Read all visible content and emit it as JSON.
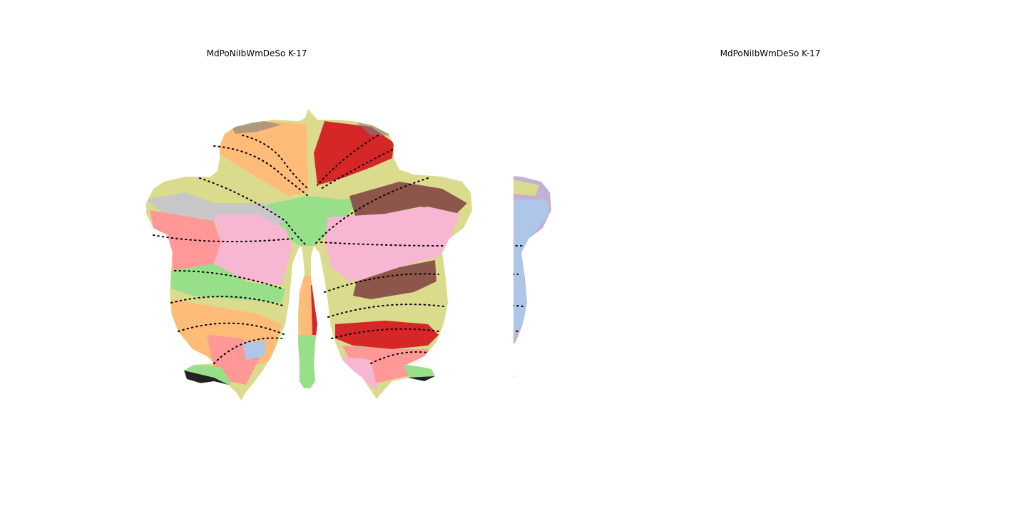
{
  "figure": {
    "panels": [
      {
        "title": "MdPoNiIbWmDeSo K-17",
        "image": "cerebellar flatmap parcellation",
        "palette": {
          "olive": "#dbdb8d",
          "light_orange": "#ffbb78",
          "orange": "#ff7f0e",
          "red": "#d62728",
          "light_green": "#98df8a",
          "green": "#2ca02c",
          "brown": "#8c564b",
          "light_brown": "#c49c94",
          "pink": "#f7b6d2",
          "magenta": "#e377c2",
          "salmon": "#ff9896",
          "grey": "#c7c7c7",
          "dark_grey": "#7f7f7f",
          "lavender": "#c5b0d5",
          "purple": "#9467bd",
          "light_blue": "#aec7e8",
          "yellow_green": "#bcbd22"
        }
      },
      {
        "title": "MdPoNiIbWmDeSo K-17",
        "image": "cerebellar flatmap parcellation",
        "palette": {
          "olive": "#dbdb8d",
          "light_orange": "#ffbb78",
          "orange": "#ff7f0e",
          "red": "#d62728",
          "light_green": "#98df8a",
          "green": "#2ca02c",
          "brown": "#8c564b",
          "light_brown": "#c49c94",
          "pink": "#f7b6d2",
          "magenta": "#e377c2",
          "salmon": "#ff9896",
          "grey": "#c7c7c7",
          "dark_grey": "#7f7f7f",
          "lavender": "#c5b0d5",
          "purple": "#9467bd",
          "light_blue": "#aec7e8",
          "yellow_green": "#bcbd22"
        }
      }
    ]
  }
}
